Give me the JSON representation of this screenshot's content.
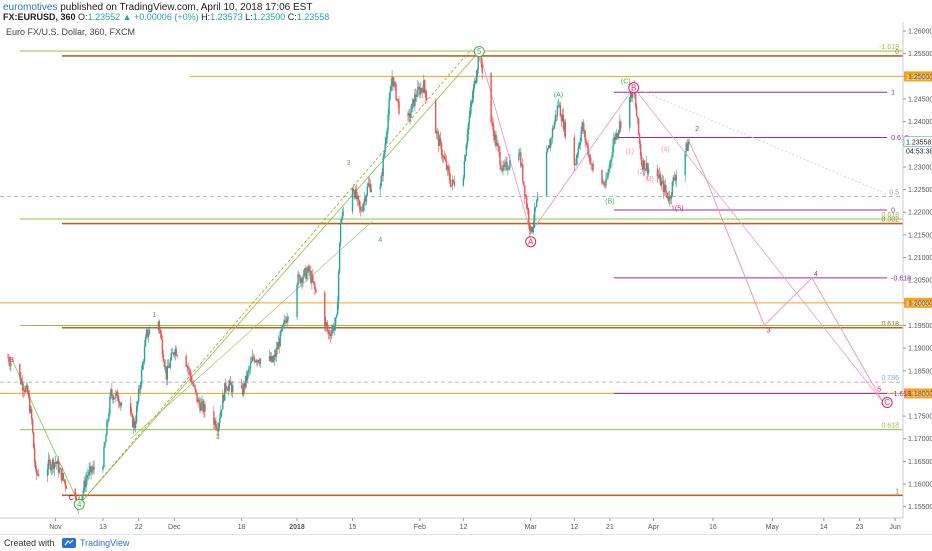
{
  "header": {
    "user": "euromotives",
    "published_text": "published on TradingView.com, April 10, 2018 17:06 EST",
    "symbol": "FX:EURUSD, 360",
    "o_label": "O:",
    "o_value": "1.23552",
    "change": "▲ +0.00006 (+0%)",
    "h_label": "H:",
    "h_value": "1.23573",
    "l_label": "L:",
    "l_value": "1.23500",
    "c_label": "C:",
    "c_value": "1.23558"
  },
  "chart_title": "Euro FX/U.S. Dollar, 360, FXCM",
  "footer": {
    "created_with": "Created with",
    "brand": "TradingView"
  },
  "colors": {
    "up": "#26a69a",
    "down": "#ef5350",
    "orange": "#f7a21b",
    "brown": "#b5651d",
    "purple": "#9c27b0",
    "light_green": "#8bc34a",
    "wave_green": "#4caf50",
    "wave_red": "#e91e63",
    "dashed_blue": "#90a4d4"
  },
  "chart_data": {
    "type": "candlestick",
    "title": "Euro FX/U.S. Dollar, 360, FXCM",
    "ylim": [
      1.1525,
      1.262
    ],
    "yticks": [
      "1.26000",
      "1.25500",
      "1.25000",
      "1.24500",
      "1.24000",
      "1.23500",
      "1.23000",
      "1.22500",
      "1.22000",
      "1.21500",
      "1.21000",
      "1.20500",
      "1.20000",
      "1.19500",
      "1.19000",
      "1.18500",
      "1.18000",
      "1.17500",
      "1.17000",
      "1.16500",
      "1.16000",
      "1.15500"
    ],
    "xticks": [
      "Nov",
      "13",
      "22",
      "Dec",
      "18",
      "2018",
      "15",
      "Feb",
      "12",
      "Mar",
      "12",
      "21",
      "Apr",
      "16",
      "May",
      "14",
      "23",
      "Jun"
    ],
    "last_price": "1.23558",
    "countdown": "04:53:38",
    "price_path": [
      [
        "2017-10-20",
        1.188
      ],
      [
        "2017-10-25",
        1.18
      ],
      [
        "2017-10-26",
        1.174
      ],
      [
        "2017-10-27",
        1.162
      ],
      [
        "2017-10-30",
        1.164
      ],
      [
        "2017-11-01",
        1.165
      ],
      [
        "2017-11-03",
        1.161
      ],
      [
        "2017-11-07",
        1.1555
      ],
      [
        "2017-11-09",
        1.162
      ],
      [
        "2017-11-13",
        1.165
      ],
      [
        "2017-11-15",
        1.18
      ],
      [
        "2017-11-17",
        1.179
      ],
      [
        "2017-11-21",
        1.173
      ],
      [
        "2017-11-24",
        1.193
      ],
      [
        "2017-11-27",
        1.196
      ],
      [
        "2017-11-29",
        1.184
      ],
      [
        "2017-12-01",
        1.19
      ],
      [
        "2017-12-04",
        1.187
      ],
      [
        "2017-12-07",
        1.178
      ],
      [
        "2017-12-12",
        1.173
      ],
      [
        "2017-12-14",
        1.182
      ],
      [
        "2017-12-18",
        1.18
      ],
      [
        "2017-12-21",
        1.188
      ],
      [
        "2017-12-26",
        1.187
      ],
      [
        "2018-01-01",
        1.205
      ],
      [
        "2018-01-04",
        1.207
      ],
      [
        "2018-01-09",
        1.193
      ],
      [
        "2018-01-11",
        1.196
      ],
      [
        "2018-01-12",
        1.218
      ],
      [
        "2018-01-15",
        1.226
      ],
      [
        "2018-01-17",
        1.22
      ],
      [
        "2018-01-19",
        1.226
      ],
      [
        "2018-01-22",
        1.225
      ],
      [
        "2018-01-25",
        1.25
      ],
      [
        "2018-01-27",
        1.242
      ],
      [
        "2018-01-29",
        1.24
      ],
      [
        "2018-01-31",
        1.246
      ],
      [
        "2018-02-02",
        1.248
      ],
      [
        "2018-02-05",
        1.238
      ],
      [
        "2018-02-09",
        1.226
      ],
      [
        "2018-02-12",
        1.229
      ],
      [
        "2018-02-13",
        1.238
      ],
      [
        "2018-02-16",
        1.2555
      ],
      [
        "2018-02-19",
        1.24
      ],
      [
        "2018-02-22",
        1.229
      ],
      [
        "2018-02-26",
        1.234
      ],
      [
        "2018-03-01",
        1.2155
      ],
      [
        "2018-03-05",
        1.232
      ],
      [
        "2018-03-08",
        1.244
      ],
      [
        "2018-03-12",
        1.23
      ],
      [
        "2018-03-14",
        1.239
      ],
      [
        "2018-03-17",
        1.228
      ],
      [
        "2018-03-20",
        1.226
      ],
      [
        "2018-03-22",
        1.236
      ],
      [
        "2018-03-27",
        1.2475
      ],
      [
        "2018-03-29",
        1.231
      ],
      [
        "2018-04-02",
        1.228
      ],
      [
        "2018-04-05",
        1.223
      ],
      [
        "2018-04-06",
        1.227
      ],
      [
        "2018-04-10",
        1.2356
      ]
    ],
    "wave_labels": [
      {
        "text": "5",
        "price": 1.2555,
        "date": "2018-02-16",
        "color": "green",
        "circled": true
      },
      {
        "text": "4",
        "price": 1.1555,
        "date": "2017-11-07",
        "color": "green",
        "circled": true
      },
      {
        "text": "A",
        "price": 1.2135,
        "date": "2018-03-01",
        "color": "red",
        "circled": true
      },
      {
        "text": "B",
        "price": 1.2475,
        "date": "2018-03-27",
        "color": "red",
        "circled": true
      },
      {
        "text": "C",
        "price": 1.178,
        "date": "2018-05-30",
        "color": "red",
        "circled": true
      },
      {
        "text": "(A)",
        "price": 1.246,
        "date": "2018-03-08",
        "color": "green"
      },
      {
        "text": "(B)",
        "price": 1.2225,
        "date": "2018-03-21",
        "color": "green"
      },
      {
        "text": "(C)",
        "price": 1.249,
        "date": "2018-03-25",
        "color": "green"
      },
      {
        "text": "3",
        "price": 1.231,
        "date": "2018-01-14",
        "color": "green"
      },
      {
        "text": "4",
        "price": 1.214,
        "date": "2018-01-22",
        "color": "green"
      },
      {
        "text": "1",
        "price": 1.1975,
        "date": "2017-11-26",
        "color": "green"
      },
      {
        "text": "2",
        "price": 1.1705,
        "date": "2017-12-12",
        "color": "green"
      },
      {
        "text": "B",
        "price": 1.1875,
        "date": "2017-10-21",
        "color": "red"
      },
      {
        "text": "C",
        "price": 1.157,
        "date": "2017-11-05",
        "color": "black"
      },
      {
        "text": "2",
        "price": 1.2385,
        "date": "2018-04-12",
        "color": "red"
      },
      {
        "text": "(1)",
        "price": 1.2335,
        "date": "2018-03-26",
        "color": "pink"
      },
      {
        "text": "(2)",
        "price": 1.229,
        "date": "2018-03-29",
        "color": "pink"
      },
      {
        "text": "(3)",
        "price": 1.2275,
        "date": "2018-03-31",
        "color": "pink"
      },
      {
        "text": "(4)",
        "price": 1.234,
        "date": "2018-04-04",
        "color": "pink"
      },
      {
        "text": "1(5)",
        "price": 1.221,
        "date": "2018-04-07",
        "color": "red"
      },
      {
        "text": "3",
        "price": 1.194,
        "date": "2018-04-30",
        "color": "red"
      },
      {
        "text": "4",
        "price": 1.2065,
        "date": "2018-05-12",
        "color": "purple"
      },
      {
        "text": "5",
        "price": 1.181,
        "date": "2018-05-28",
        "color": "red"
      }
    ],
    "horizontal_levels": [
      {
        "price": 1.2545,
        "color": "brown",
        "label": "0"
      },
      {
        "price": 1.2556,
        "color": "light_green",
        "label": "-1.618"
      },
      {
        "price": 1.25,
        "color": "orange",
        "label": "1.25000",
        "tag": true
      },
      {
        "price": 1.2175,
        "color": "brown",
        "label": "0.382"
      },
      {
        "price": 1.2185,
        "color": "light_green",
        "label": "0.618"
      },
      {
        "price": 1.2,
        "color": "orange",
        "label": "1.20000",
        "tag": true
      },
      {
        "price": 1.1945,
        "color": "brown",
        "label": "0.618"
      },
      {
        "price": 1.195,
        "color": "light_green",
        "label": ""
      },
      {
        "price": 1.18,
        "color": "orange",
        "label": "1.18000",
        "tag": true
      },
      {
        "price": 1.172,
        "color": "light_green",
        "label": "0.618"
      },
      {
        "price": 1.1575,
        "color": "brown",
        "label": "1"
      },
      {
        "price": 1.1825,
        "color": "dashed_blue",
        "label": "0.786"
      },
      {
        "price": 1.2235,
        "color": "dashed_blue",
        "label": "0.5"
      }
    ],
    "fib_purple": [
      {
        "price": 1.2465,
        "label": "1"
      },
      {
        "price": 1.2365,
        "label": "0.618"
      },
      {
        "price": 1.2205,
        "label": "0"
      },
      {
        "price": 1.2055,
        "label": "-0.618"
      },
      {
        "price": 1.18,
        "label": "-1.618"
      }
    ],
    "projection": [
      [
        "2018-04-10",
        1.2356
      ],
      [
        "2018-04-14",
        1.228
      ],
      [
        "2018-04-29",
        1.195
      ],
      [
        "2018-05-11",
        1.2055
      ],
      [
        "2018-05-29",
        1.178
      ]
    ]
  }
}
